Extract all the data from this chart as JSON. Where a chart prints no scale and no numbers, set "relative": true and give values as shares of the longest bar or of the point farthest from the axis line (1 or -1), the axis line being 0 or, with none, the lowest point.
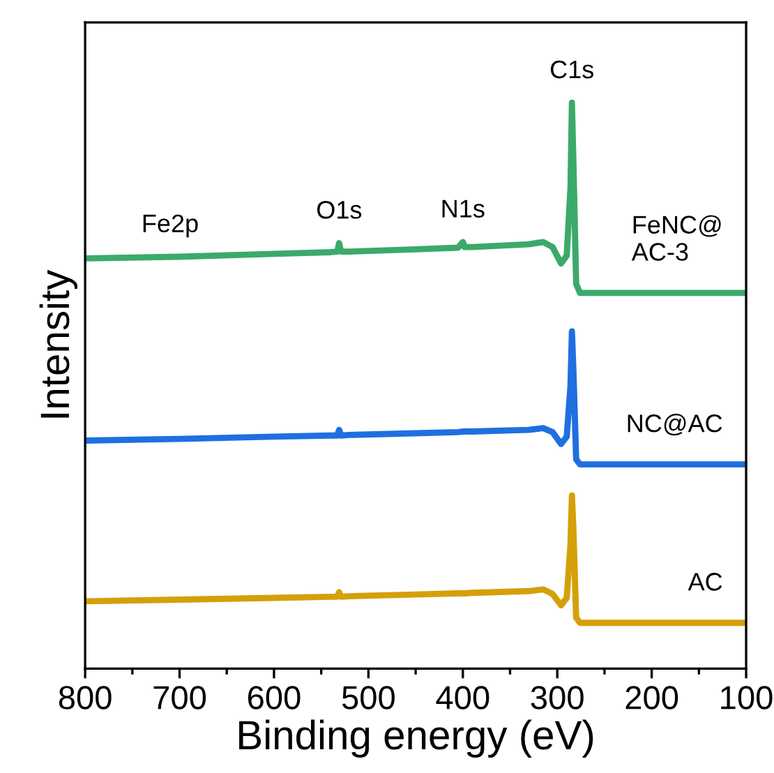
{
  "chart_data": {
    "type": "line",
    "relative": true,
    "xlabel": "Binding energy (eV)",
    "ylabel": "Intensity",
    "xlim": [
      800,
      100
    ],
    "xticks": [
      800,
      700,
      600,
      500,
      400,
      300,
      200,
      100
    ],
    "grid": false,
    "legend": false,
    "marker": "none",
    "line_style": "solid",
    "tick_labels": "x",
    "x": [
      800,
      700,
      600,
      540,
      533,
      531,
      529,
      520,
      450,
      405,
      400,
      398,
      390,
      330,
      315,
      305,
      296,
      290,
      286,
      284.5,
      283,
      280,
      276,
      200,
      100
    ],
    "series": [
      {
        "name": "FeNC@\nAC-3",
        "color": "#3aaa6a",
        "values": [
          0.725,
          0.728,
          0.733,
          0.736,
          0.737,
          0.752,
          0.737,
          0.737,
          0.741,
          0.744,
          0.754,
          0.745,
          0.745,
          0.75,
          0.754,
          0.745,
          0.716,
          0.73,
          0.85,
          1.0,
          0.9,
          0.68,
          0.664,
          0.664,
          0.664
        ]
      },
      {
        "name": "NC@AC",
        "color": "#1f6fe0",
        "values": [
          0.403,
          0.406,
          0.41,
          0.412,
          0.412,
          0.422,
          0.412,
          0.413,
          0.416,
          0.418,
          0.419,
          0.419,
          0.419,
          0.422,
          0.425,
          0.418,
          0.397,
          0.41,
          0.5,
          0.596,
          0.53,
          0.37,
          0.361,
          0.361,
          0.361
        ]
      },
      {
        "name": "AC",
        "color": "#d4a00a",
        "values": [
          0.119,
          0.122,
          0.125,
          0.127,
          0.127,
          0.135,
          0.127,
          0.128,
          0.131,
          0.133,
          0.133,
          0.133,
          0.134,
          0.137,
          0.14,
          0.132,
          0.112,
          0.125,
          0.22,
          0.306,
          0.25,
          0.09,
          0.081,
          0.081,
          0.081
        ]
      }
    ],
    "annotations": [
      {
        "text": "Fe2p",
        "x": 710,
        "y": 0.728
      },
      {
        "text": "O1s",
        "x": 531,
        "y": 0.752
      },
      {
        "text": "N1s",
        "x": 400,
        "y": 0.754
      },
      {
        "text": "C1s",
        "x": 284.5,
        "y": 1.0
      }
    ]
  }
}
